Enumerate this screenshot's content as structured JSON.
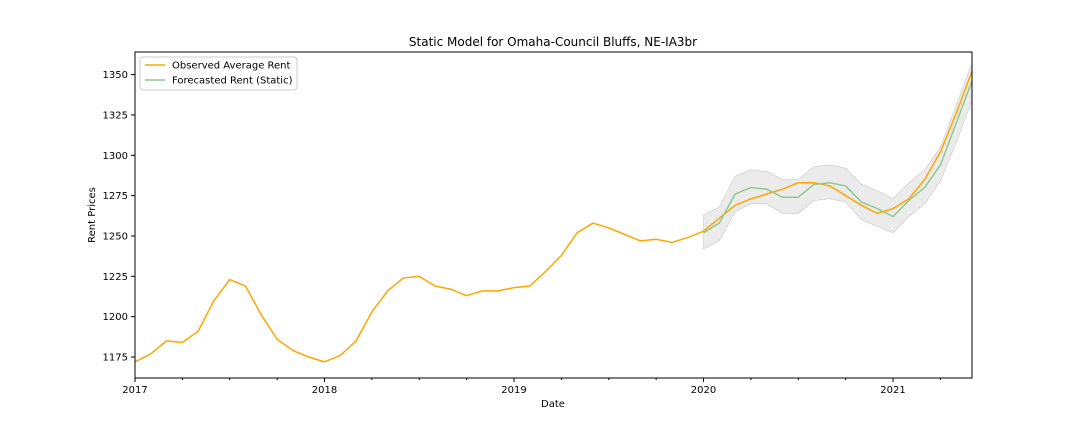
{
  "chart_data": {
    "type": "line",
    "title": "Static Model for Omaha-Council Bluffs, NE-IA3br",
    "xlabel": "Date",
    "ylabel": "Rent Prices",
    "x_ticks": [
      {
        "date": "2017-01",
        "label": "2017"
      },
      {
        "date": "2018-01",
        "label": "2018"
      },
      {
        "date": "2019-01",
        "label": "2019"
      },
      {
        "date": "2020-01",
        "label": "2020"
      },
      {
        "date": "2021-01",
        "label": "2021"
      }
    ],
    "y_ticks": [
      1175,
      1200,
      1225,
      1250,
      1275,
      1300,
      1325,
      1350
    ],
    "xlim": [
      "2017-01",
      "2021-06"
    ],
    "ylim": [
      1162,
      1364
    ],
    "legend_position": "upper left",
    "colors": {
      "observed": "#ffa500",
      "forecast": "#8fc98f",
      "band": "#d3d3d3"
    },
    "series": [
      {
        "name": "Observed Average Rent",
        "x": [
          "2017-01",
          "2017-02",
          "2017-03",
          "2017-04",
          "2017-05",
          "2017-06",
          "2017-07",
          "2017-08",
          "2017-09",
          "2017-10",
          "2017-11",
          "2017-12",
          "2018-01",
          "2018-02",
          "2018-03",
          "2018-04",
          "2018-05",
          "2018-06",
          "2018-07",
          "2018-08",
          "2018-09",
          "2018-10",
          "2018-11",
          "2018-12",
          "2019-01",
          "2019-02",
          "2019-03",
          "2019-04",
          "2019-05",
          "2019-06",
          "2019-07",
          "2019-08",
          "2019-09",
          "2019-10",
          "2019-11",
          "2019-12",
          "2020-01",
          "2020-02",
          "2020-03",
          "2020-04",
          "2020-05",
          "2020-06",
          "2020-07",
          "2020-08",
          "2020-09",
          "2020-10",
          "2020-11",
          "2020-12",
          "2021-01",
          "2021-02",
          "2021-03",
          "2021-04",
          "2021-05",
          "2021-06"
        ],
        "values": [
          1172,
          1177,
          1185,
          1184,
          1191,
          1210,
          1223,
          1219,
          1201,
          1186,
          1179,
          1175,
          1172,
          1176,
          1185,
          1203,
          1216,
          1224,
          1225,
          1219,
          1217,
          1213,
          1216,
          1216,
          1218,
          1219,
          1228,
          1238,
          1252,
          1258,
          1255,
          1251,
          1247,
          1248,
          1246,
          1249,
          1253,
          1261,
          1269,
          1273,
          1276,
          1279,
          1283,
          1283,
          1281,
          1275,
          1269,
          1264,
          1267,
          1273,
          1285,
          1302,
          1326,
          1352
        ]
      },
      {
        "name": "Forecasted Rent (Static)",
        "x": [
          "2020-01",
          "2020-02",
          "2020-03",
          "2020-04",
          "2020-05",
          "2020-06",
          "2020-07",
          "2020-08",
          "2020-09",
          "2020-10",
          "2020-11",
          "2020-12",
          "2021-01",
          "2021-02",
          "2021-03",
          "2021-04",
          "2021-05",
          "2021-06"
        ],
        "values": [
          1252,
          1258,
          1276,
          1280,
          1279,
          1274,
          1274,
          1282,
          1283,
          1281,
          1271,
          1267,
          1262,
          1272,
          1280,
          1294,
          1320,
          1346
        ],
        "lower": [
          1242,
          1247,
          1265,
          1270,
          1270,
          1264,
          1264,
          1272,
          1273,
          1271,
          1260,
          1256,
          1252,
          1262,
          1270,
          1284,
          1308,
          1334
        ],
        "upper": [
          1263,
          1268,
          1287,
          1291,
          1290,
          1285,
          1285,
          1293,
          1294,
          1292,
          1282,
          1278,
          1273,
          1283,
          1291,
          1305,
          1331,
          1357
        ]
      }
    ]
  }
}
